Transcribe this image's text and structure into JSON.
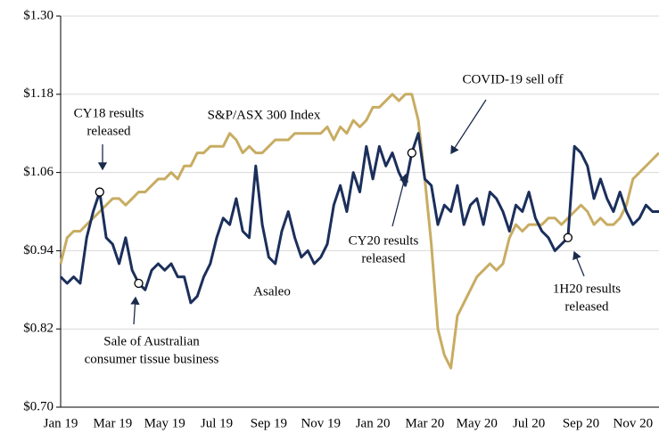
{
  "chart_data": {
    "type": "line",
    "categories": [
      "Jan 19",
      null,
      null,
      null,
      null,
      null,
      null,
      null,
      "Mar 19",
      null,
      null,
      null,
      null,
      null,
      null,
      null,
      "May 19",
      null,
      null,
      null,
      null,
      null,
      null,
      null,
      "Jul 19",
      null,
      null,
      null,
      null,
      null,
      null,
      null,
      "Sep 19",
      null,
      null,
      null,
      null,
      null,
      null,
      null,
      "Nov 19",
      null,
      null,
      null,
      null,
      null,
      null,
      null,
      "Jan 20",
      null,
      null,
      null,
      null,
      null,
      null,
      null,
      "Mar 20",
      null,
      null,
      null,
      null,
      null,
      null,
      null,
      "May 20",
      null,
      null,
      null,
      null,
      null,
      null,
      null,
      "Jul 20",
      null,
      null,
      null,
      null,
      null,
      null,
      null,
      "Sep 20",
      null,
      null,
      null,
      null,
      null,
      null,
      null,
      "Nov 20",
      null,
      null,
      null,
      null
    ],
    "series": [
      {
        "name": "Asaleo",
        "color": "#1b2f5b",
        "values": [
          0.9,
          0.89,
          0.9,
          0.89,
          0.96,
          1.0,
          1.03,
          0.96,
          0.95,
          0.92,
          0.96,
          0.91,
          0.89,
          0.88,
          0.91,
          0.92,
          0.91,
          0.92,
          0.9,
          0.9,
          0.86,
          0.87,
          0.9,
          0.92,
          0.96,
          0.99,
          0.98,
          1.02,
          0.97,
          0.96,
          1.07,
          0.98,
          0.93,
          0.92,
          0.97,
          1.0,
          0.96,
          0.93,
          0.94,
          0.92,
          0.93,
          0.95,
          1.01,
          1.04,
          1.0,
          1.06,
          1.03,
          1.1,
          1.05,
          1.1,
          1.07,
          1.09,
          1.06,
          1.04,
          1.09,
          1.12,
          1.05,
          1.04,
          0.98,
          1.01,
          1.0,
          1.04,
          0.98,
          1.01,
          1.02,
          0.98,
          1.03,
          1.02,
          1.0,
          0.97,
          1.01,
          1.0,
          1.03,
          0.99,
          0.97,
          0.96,
          0.94,
          0.95,
          0.96,
          1.1,
          1.09,
          1.07,
          1.02,
          1.05,
          1.02,
          1.0,
          1.03,
          1.0,
          0.98,
          0.99,
          1.01,
          1.0,
          1.0
        ]
      },
      {
        "name": "S&P/ASX 300 Index",
        "color": "#c8ac62",
        "values": [
          0.92,
          0.96,
          0.97,
          0.97,
          0.98,
          0.99,
          1.0,
          1.01,
          1.02,
          1.02,
          1.01,
          1.02,
          1.03,
          1.03,
          1.04,
          1.05,
          1.05,
          1.06,
          1.05,
          1.07,
          1.07,
          1.09,
          1.09,
          1.1,
          1.1,
          1.1,
          1.12,
          1.11,
          1.09,
          1.1,
          1.09,
          1.09,
          1.1,
          1.11,
          1.11,
          1.11,
          1.12,
          1.12,
          1.12,
          1.12,
          1.12,
          1.13,
          1.11,
          1.13,
          1.12,
          1.14,
          1.13,
          1.14,
          1.16,
          1.16,
          1.17,
          1.18,
          1.17,
          1.18,
          1.18,
          1.14,
          1.05,
          0.95,
          0.82,
          0.78,
          0.76,
          0.84,
          0.86,
          0.88,
          0.9,
          0.91,
          0.92,
          0.91,
          0.92,
          0.96,
          0.98,
          0.97,
          0.98,
          0.98,
          0.98,
          0.99,
          0.99,
          0.98,
          0.99,
          1.0,
          1.01,
          1.0,
          0.98,
          0.99,
          0.98,
          0.98,
          0.99,
          1.01,
          1.05,
          1.06,
          1.07,
          1.08,
          1.09
        ]
      }
    ],
    "ylim": [
      0.7,
      1.3
    ],
    "yticks": [
      {
        "value": 0.7,
        "label": "$0.70"
      },
      {
        "value": 0.82,
        "label": "$0.82"
      },
      {
        "value": 0.94,
        "label": "$0.94"
      },
      {
        "value": 1.06,
        "label": "$1.06"
      },
      {
        "value": 1.18,
        "label": "$1.18"
      },
      {
        "value": 1.3,
        "label": "$1.30"
      }
    ],
    "grid": true,
    "annotations": [
      {
        "lines": [
          "CY18 results",
          "released"
        ]
      },
      {
        "lines": [
          "S&P/ASX 300 Index"
        ]
      },
      {
        "lines": [
          "COVID-19 sell off"
        ]
      },
      {
        "lines": [
          "Asaleo"
        ]
      },
      {
        "lines": [
          "Sale of Australian",
          "consumer tissue business"
        ]
      },
      {
        "lines": [
          "CY20 results",
          "released"
        ]
      },
      {
        "lines": [
          "1H20 results",
          "released"
        ]
      }
    ]
  }
}
